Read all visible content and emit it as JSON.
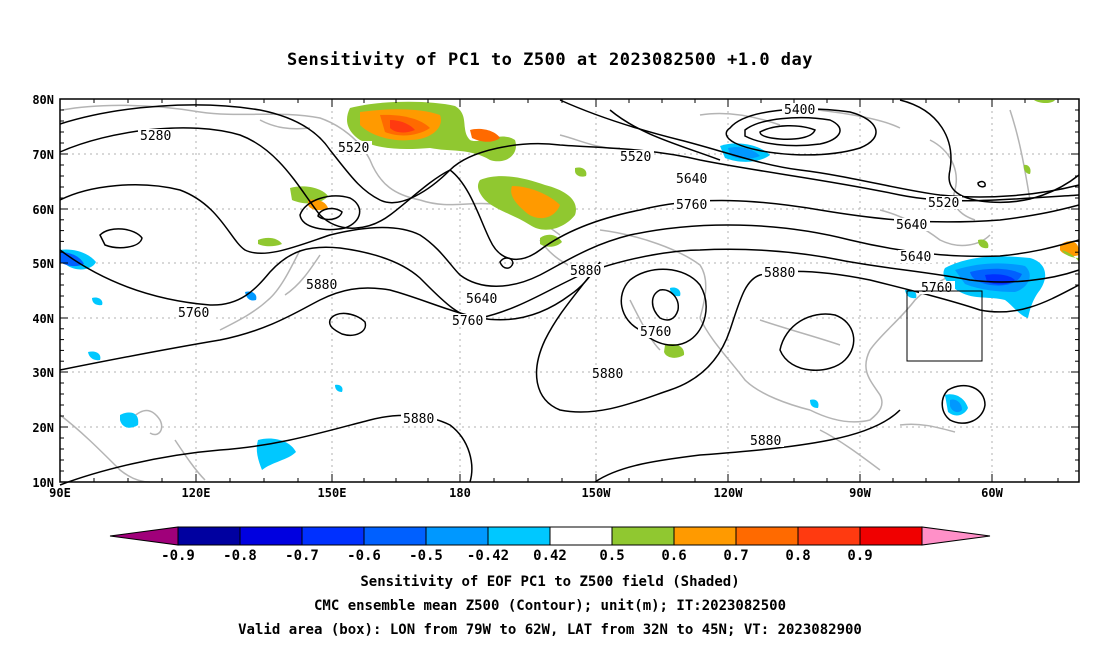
{
  "title": "Sensitivity of PC1 to Z500 at 2023082500 +1.0 day",
  "map": {
    "lon_ticks": [
      "90E",
      "120E",
      "150E",
      "180",
      "150W",
      "120W",
      "90W",
      "60W"
    ],
    "lat_ticks": [
      "80N",
      "70N",
      "60N",
      "50N",
      "40N",
      "30N",
      "20N",
      "10N"
    ],
    "contour_labels": [
      {
        "text": "5280"
      },
      {
        "text": "5400"
      },
      {
        "text": "5520"
      },
      {
        "text": "5520"
      },
      {
        "text": "5520"
      },
      {
        "text": "5640"
      },
      {
        "text": "5640"
      },
      {
        "text": "5640"
      },
      {
        "text": "5640"
      },
      {
        "text": "5760"
      },
      {
        "text": "5760"
      },
      {
        "text": "5760"
      },
      {
        "text": "5760"
      },
      {
        "text": "5760"
      },
      {
        "text": "5880"
      },
      {
        "text": "5880"
      },
      {
        "text": "5880"
      },
      {
        "text": "5880"
      },
      {
        "text": "5880"
      },
      {
        "text": "5880"
      }
    ],
    "valid_box": {
      "lon_from": "79W",
      "lon_to": "62W",
      "lat_from": "32N",
      "lat_to": "45N"
    }
  },
  "colorbar": {
    "labels": [
      "-0.9",
      "-0.8",
      "-0.7",
      "-0.6",
      "-0.5",
      "-0.42",
      "0.42",
      "0.5",
      "0.6",
      "0.7",
      "0.8",
      "0.9"
    ],
    "colors": [
      "#a0007a",
      "#0000a0",
      "#0000e0",
      "#0030ff",
      "#0060ff",
      "#0098ff",
      "#00c8ff",
      "#ffffff",
      "#90c830",
      "#ff9a00",
      "#ff6a00",
      "#ff3a10",
      "#f00000",
      "#ff90c8"
    ]
  },
  "captions": {
    "line1": "Sensitivity of EOF PC1 to Z500 field (Shaded)",
    "line2": "CMC ensemble mean Z500 (Contour); unit(m); IT:2023082500",
    "line3": "Valid area (box): LON from 79W to 62W, LAT from 32N to 45N; VT: 2023082900"
  }
}
